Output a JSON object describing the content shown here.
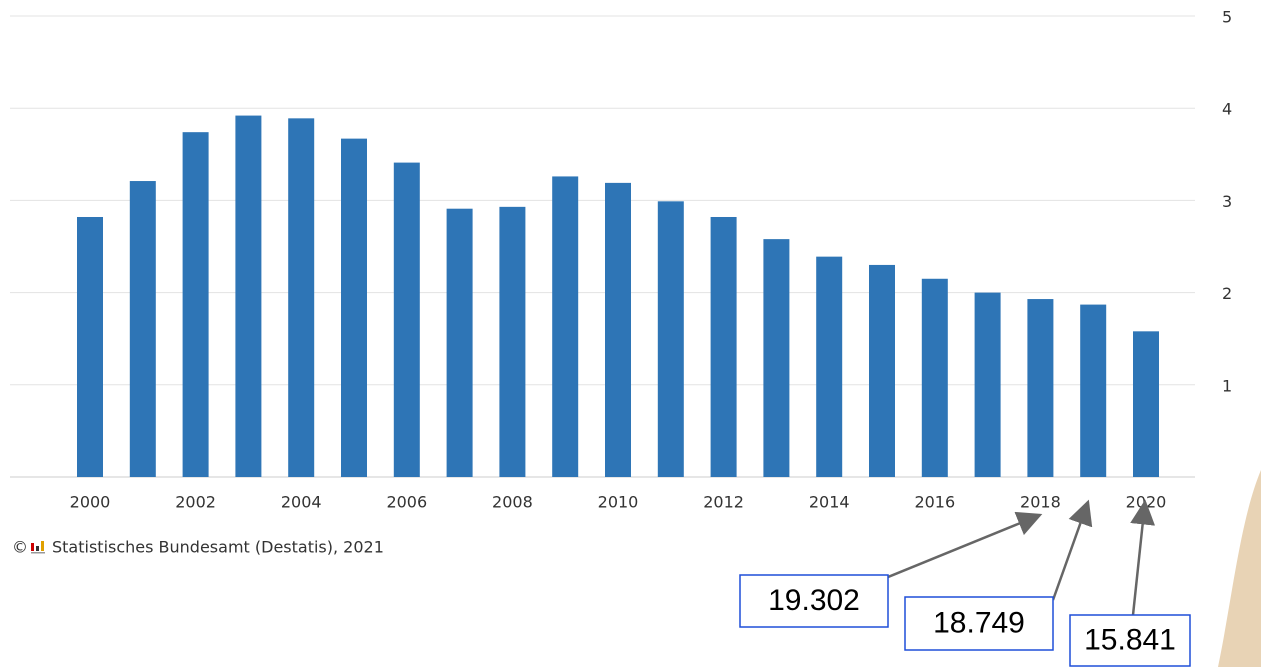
{
  "chart_data": {
    "type": "bar",
    "categories": [
      "2000",
      null,
      "2002",
      null,
      "2004",
      null,
      "2006",
      null,
      "2008",
      null,
      "2010",
      null,
      "2012",
      null,
      "2014",
      null,
      "2016",
      null,
      "2018",
      null,
      "2020"
    ],
    "values": [
      2.82,
      3.21,
      3.74,
      3.92,
      3.89,
      3.67,
      3.41,
      2.91,
      2.93,
      3.26,
      3.19,
      2.99,
      2.82,
      2.58,
      2.39,
      2.3,
      2.15,
      2.0,
      1.93,
      1.87,
      1.58
    ],
    "color": "#2e75b6",
    "ylim": [
      0,
      5
    ],
    "yticks": [
      1,
      2,
      3,
      4,
      5
    ],
    "grid": true,
    "copyright": "©",
    "source": "Statistisches Bundesamt (Destatis), 2021",
    "annotations": [
      "19.302",
      "18.749",
      "15.841"
    ]
  }
}
